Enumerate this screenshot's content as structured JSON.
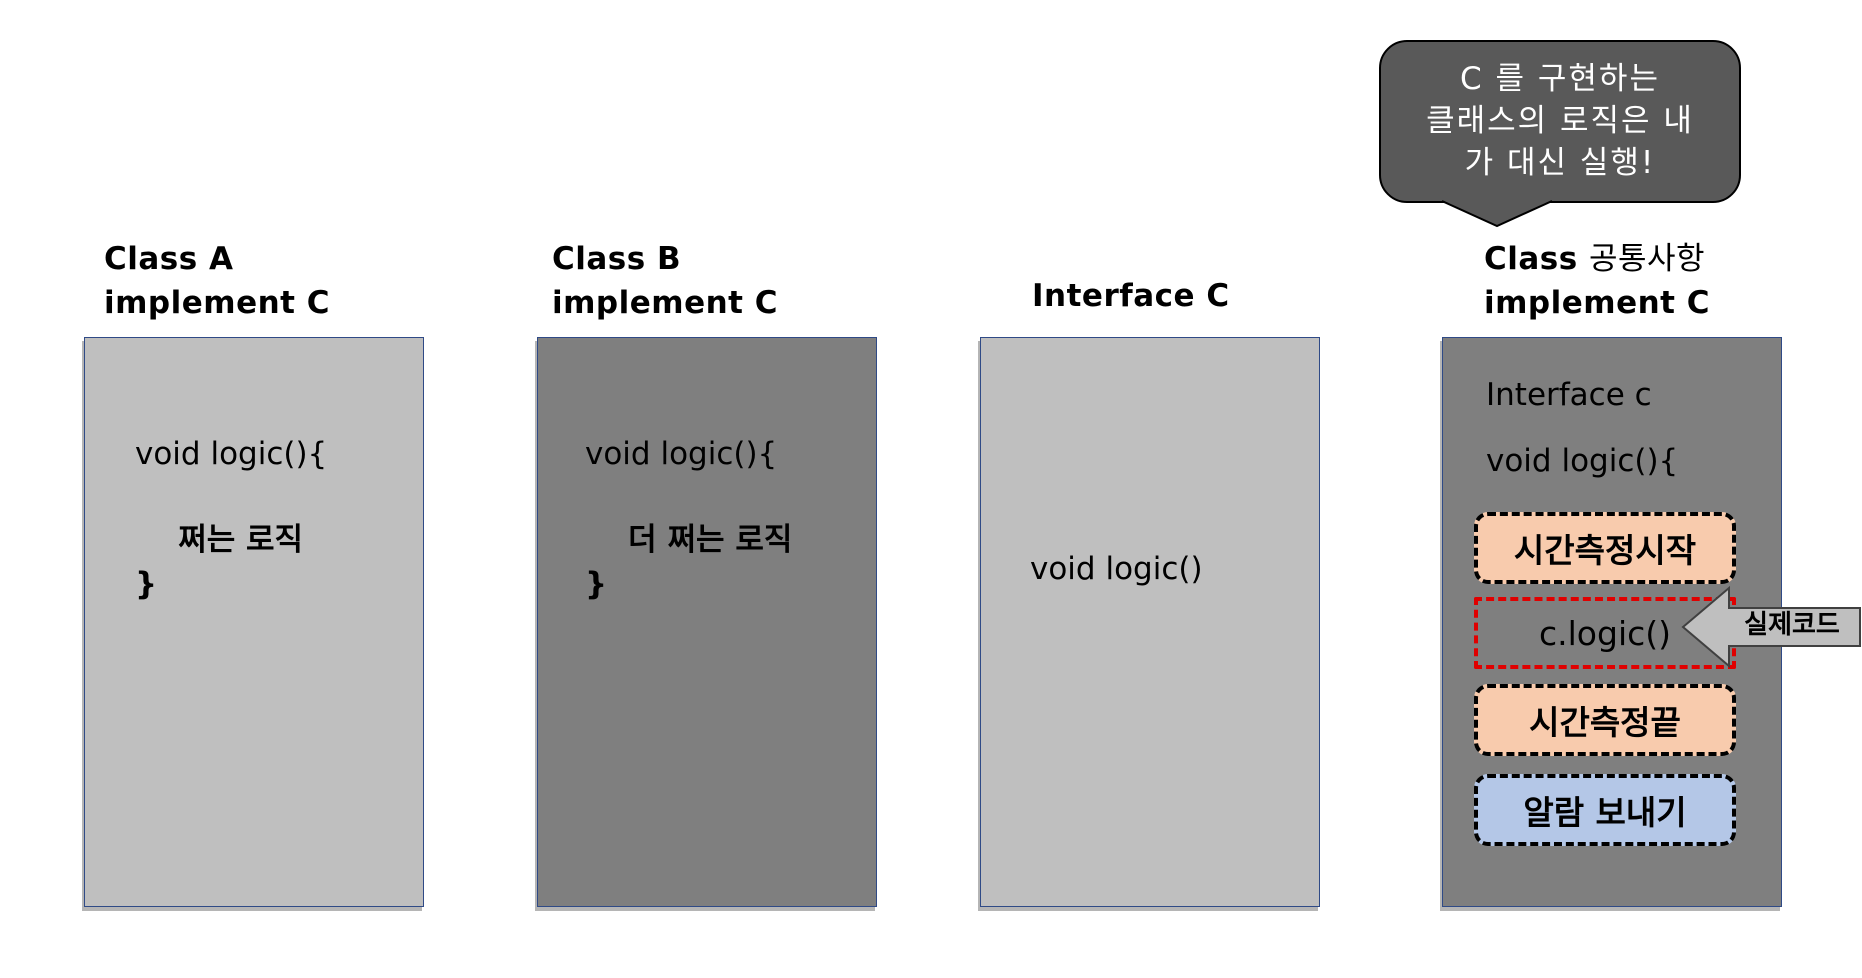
{
  "columns": {
    "a": {
      "title_line1": "Class A",
      "title_line2": "implement C",
      "code_line1": "void logic(){",
      "code_line2": "    쩌는 로직",
      "code_line3": "}"
    },
    "b": {
      "title_line1": "Class B",
      "title_line2": "implement C",
      "code_line1": "void logic(){",
      "code_line2": "    더 쩌는 로직",
      "code_line3": "}"
    },
    "c": {
      "title": "Interface C",
      "code_line1": "void logic()"
    },
    "d": {
      "title_class": "Class",
      "title_korean": "공통사항",
      "title_line2": "implement C",
      "code_line1": "Interface c",
      "code_line2": "void logic(){",
      "box_start": "시간측정시작",
      "box_real": "c.logic()",
      "box_end": "시간측정끝",
      "box_alarm": "알람 보내기"
    }
  },
  "callout": {
    "line1": "C 를 구현하는",
    "line2": "클래스의 로직은 내",
    "line3": "가 대신 실행!"
  },
  "arrow_label": "실제코드",
  "colors": {
    "panel_light": "#bfbfbf",
    "panel_dark": "#7f7f7f",
    "peach_box": "#f8cbad",
    "blue_box": "#b4c7e7",
    "real_code_border": "#e00000",
    "bubble": "#595959"
  }
}
